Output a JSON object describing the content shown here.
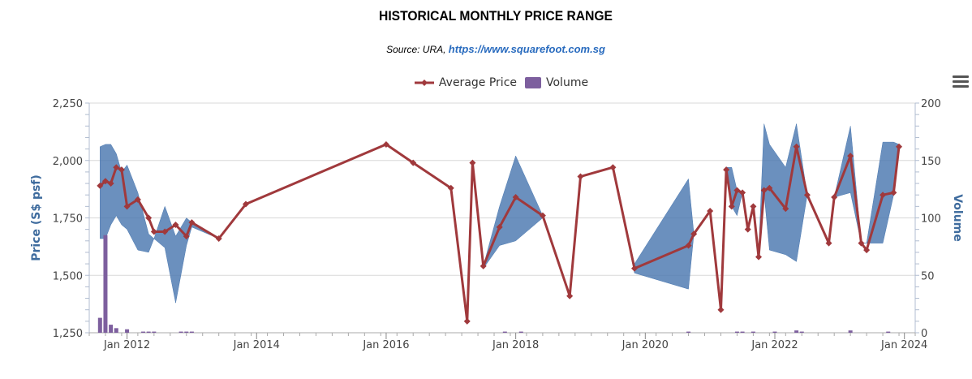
{
  "title": "HISTORICAL MONTHLY PRICE RANGE",
  "subtitle": {
    "prefix": "Source: URA, ",
    "link_text": "https://www.squarefoot.com.sg"
  },
  "legend": {
    "average_price": "Average Price",
    "volume": "Volume"
  },
  "colors": {
    "average_price": "#a0393c",
    "range": "#4a78b0",
    "volume": "#7d5f9e",
    "axis_title": "#3f6c9e",
    "grid": "#d8d8d8"
  },
  "icons": {
    "menu": "hamburger-menu-icon"
  },
  "chart_data": {
    "type": "line",
    "title": "HISTORICAL MONTHLY PRICE RANGE",
    "ylabel": "Price (S$ psf)",
    "y2label": "Volume",
    "ylim": [
      1250,
      2250
    ],
    "y2lim": [
      0,
      200
    ],
    "yticks": [
      "1,250",
      "1,500",
      "1,750",
      "2,000",
      "2,250"
    ],
    "y2ticks": [
      "0",
      "50",
      "100",
      "150",
      "200"
    ],
    "xlim": [
      "2011-06",
      "2024-03"
    ],
    "xticks": [
      "Jan 2012",
      "Jan 2014",
      "Jan 2016",
      "Jan 2018",
      "Jan 2020",
      "Jan 2022",
      "Jan 2024"
    ],
    "grid": true,
    "legend_position": "top-center",
    "average_price": {
      "name": "Average Price",
      "x": [
        "2011-08",
        "2011-09",
        "2011-10",
        "2011-11",
        "2011-12",
        "2012-01",
        "2012-03",
        "2012-05",
        "2012-06",
        "2012-08",
        "2012-10",
        "2012-12",
        "2013-01",
        "2013-06",
        "2013-11",
        "2016-01",
        "2016-06",
        "2017-01",
        "2017-04",
        "2017-05",
        "2017-07",
        "2017-10",
        "2018-01",
        "2018-06",
        "2018-11",
        "2019-01",
        "2019-07",
        "2019-11",
        "2020-09",
        "2020-10",
        "2021-01",
        "2021-03",
        "2021-04",
        "2021-05",
        "2021-06",
        "2021-07",
        "2021-08",
        "2021-09",
        "2021-10",
        "2021-11",
        "2021-12",
        "2022-03",
        "2022-05",
        "2022-07",
        "2022-11",
        "2022-12",
        "2023-03",
        "2023-05",
        "2023-06",
        "2023-09",
        "2023-11",
        "2023-12"
      ],
      "values": [
        1890,
        1910,
        1900,
        1970,
        1960,
        1800,
        1830,
        1750,
        1690,
        1690,
        1720,
        1670,
        1730,
        1660,
        1810,
        2070,
        1990,
        1880,
        1300,
        1990,
        1540,
        1710,
        1840,
        1760,
        1410,
        1930,
        1970,
        1530,
        1630,
        1680,
        1780,
        1350,
        1960,
        1800,
        1870,
        1860,
        1700,
        1800,
        1580,
        1870,
        1880,
        1790,
        2060,
        1850,
        1640,
        1840,
        2020,
        1640,
        1610,
        1850,
        1860,
        2060
      ]
    },
    "price_range": {
      "x": [
        "2011-08",
        "2011-09",
        "2011-10",
        "2011-11",
        "2011-12",
        "2012-01",
        "2012-03",
        "2012-05",
        "2012-06",
        "2012-08",
        "2012-10",
        "2012-12",
        "2013-01",
        "2013-06",
        "2013-11",
        "2016-01",
        "2016-06",
        "2017-01",
        "2017-04",
        "2017-05",
        "2017-07",
        "2017-10",
        "2018-01",
        "2018-06",
        "2018-11",
        "2019-01",
        "2019-07",
        "2019-11",
        "2020-09",
        "2020-10",
        "2021-01",
        "2021-03",
        "2021-04",
        "2021-05",
        "2021-06",
        "2021-07",
        "2021-08",
        "2021-09",
        "2021-10",
        "2021-11",
        "2021-12",
        "2022-03",
        "2022-05",
        "2022-07",
        "2022-11",
        "2022-12",
        "2023-03",
        "2023-05",
        "2023-06",
        "2023-09",
        "2023-11",
        "2023-12"
      ],
      "low": [
        1660,
        1660,
        1720,
        1760,
        1720,
        1700,
        1610,
        1600,
        1660,
        1620,
        1380,
        1630,
        1710,
        1660,
        1810,
        2070,
        1990,
        1880,
        1300,
        1990,
        1530,
        1630,
        1650,
        1750,
        1410,
        1930,
        1970,
        1510,
        1440,
        1680,
        1780,
        1350,
        1950,
        1800,
        1760,
        1860,
        1700,
        1800,
        1590,
        1860,
        1610,
        1590,
        1560,
        1850,
        1640,
        1840,
        1860,
        1640,
        1640,
        1640,
        1850,
        2050
      ],
      "high": [
        2060,
        2070,
        2070,
        2030,
        1950,
        1980,
        1860,
        1680,
        1660,
        1800,
        1670,
        1750,
        1730,
        1660,
        1810,
        2070,
        1990,
        1880,
        1300,
        1990,
        1540,
        1800,
        2020,
        1760,
        1410,
        1930,
        1970,
        1550,
        1920,
        1680,
        1780,
        1350,
        1970,
        1970,
        1870,
        1860,
        1700,
        1800,
        1590,
        2160,
        2070,
        1970,
        2160,
        1850,
        1640,
        1840,
        2150,
        1640,
        1640,
        2080,
        2080,
        2070
      ]
    },
    "volume": {
      "name": "Volume",
      "x": [
        "2011-08",
        "2011-09",
        "2011-10",
        "2011-11",
        "2012-01",
        "2012-04",
        "2012-05",
        "2012-06",
        "2012-11",
        "2012-12",
        "2013-01",
        "2017-11",
        "2018-02",
        "2020-09",
        "2021-06",
        "2021-07",
        "2021-09",
        "2022-01",
        "2022-05",
        "2022-06",
        "2023-03",
        "2023-10"
      ],
      "values": [
        13,
        85,
        7,
        4,
        3,
        1,
        1,
        1,
        1,
        1,
        1,
        1,
        1,
        1,
        1,
        1,
        1,
        1,
        2,
        1,
        2,
        1
      ]
    }
  }
}
